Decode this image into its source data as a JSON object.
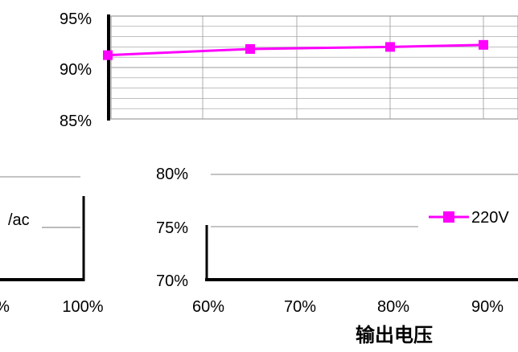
{
  "chart_data": [
    {
      "type": "line",
      "x": [
        "60%",
        "70%",
        "80%",
        "90%"
      ],
      "series": [
        {
          "name": "220V",
          "values": [
            91.2,
            91.8,
            92.0,
            92.2
          ],
          "color": "#ff00ff",
          "marker": "square"
        }
      ],
      "ylim": [
        85,
        95
      ],
      "yticks": [
        "95%",
        "90%",
        "85%"
      ],
      "grid": true
    },
    {
      "type": "line",
      "categories": [
        "60%",
        "70%",
        "80%",
        "90%"
      ],
      "yticks": [
        "80%",
        "75%",
        "70%"
      ],
      "ylim": [
        70,
        80
      ],
      "xlabel": "输出电压",
      "legend": {
        "position": "right",
        "entries": [
          {
            "name": "220V",
            "color": "#ff00ff",
            "marker": "square"
          }
        ]
      },
      "grid": true
    }
  ],
  "fragments": {
    "left_legend": "/ac",
    "left_tick": "100%",
    "left_edge_tick": "%"
  }
}
